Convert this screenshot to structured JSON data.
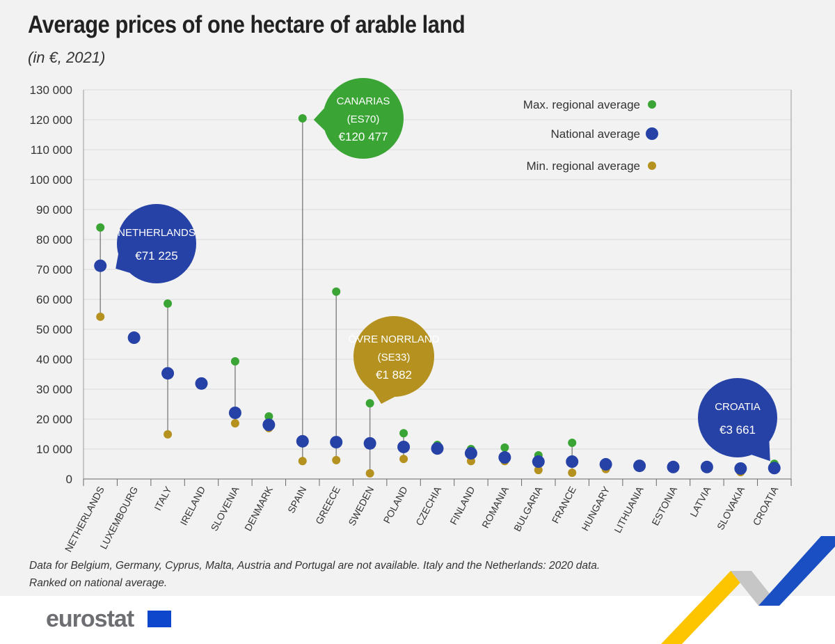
{
  "title": "Average prices of one hectare of arable land",
  "subtitle": "(in €, 2021)",
  "note_lines": [
    "Data for Belgium, Germany, Cyprus, Malta, Austria and Portugal are not available. Italy and the Netherlands: 2020 data.",
    "Ranked on national average."
  ],
  "logo": "eurostat",
  "colors": {
    "max": "#3aa535",
    "national": "#2742a6",
    "min": "#b5921f",
    "grid": "#d9d9d9"
  },
  "chart_data": {
    "type": "scatter",
    "title": "Average prices of one hectare of arable land",
    "subtitle": "(in €, 2021)",
    "ylim": [
      0,
      130000
    ],
    "yticks": [
      0,
      10000,
      20000,
      30000,
      40000,
      50000,
      60000,
      70000,
      80000,
      90000,
      100000,
      110000,
      120000,
      130000
    ],
    "ytick_labels": [
      "0",
      "10 000",
      "20 000",
      "30 000",
      "40 000",
      "50 000",
      "60 000",
      "70 000",
      "80 000",
      "90 000",
      "100 000",
      "110 000",
      "120 000",
      "130 000"
    ],
    "grid": true,
    "legend_placement": "top-right",
    "categories": [
      "NETHERLANDS",
      "LUXEMBOURG",
      "ITALY",
      "IRELAND",
      "SLOVENIA",
      "DENMARK",
      "SPAIN",
      "GREECE",
      "SWEDEN",
      "POLAND",
      "CZECHIA",
      "FINLAND",
      "ROMANIA",
      "BULGARIA",
      "FRANCE",
      "HUNGARY",
      "LITHUANIA",
      "ESTONIA",
      "LATVIA",
      "SLOVAKIA",
      "CROATIA"
    ],
    "series": [
      {
        "name": "Max. regional average",
        "values": [
          84000,
          null,
          58600,
          32500,
          39300,
          20900,
          120477,
          62600,
          25300,
          15300,
          11400,
          10000,
          10500,
          7900,
          12100,
          5300,
          4600,
          null,
          null,
          4100,
          5100
        ]
      },
      {
        "name": "National average",
        "values": [
          71225,
          47200,
          35300,
          31900,
          22100,
          18100,
          12600,
          12300,
          11900,
          10700,
          10200,
          8600,
          7200,
          5800,
          5800,
          4900,
          4400,
          4000,
          4000,
          3500,
          3661
        ]
      },
      {
        "name": "Min. regional average",
        "values": [
          54200,
          null,
          14900,
          null,
          18600,
          17000,
          6000,
          6300,
          1882,
          6700,
          9500,
          6000,
          6000,
          3000,
          2100,
          3300,
          3900,
          null,
          null,
          2300,
          null
        ]
      }
    ],
    "callouts": [
      {
        "lines": [
          "NETHERLANDS",
          "€71 225"
        ],
        "category": "NETHERLANDS",
        "series": "National average"
      },
      {
        "lines": [
          "CANARIAS",
          "(ES70)",
          "€120 477"
        ],
        "category": "SPAIN",
        "series": "Max. regional average"
      },
      {
        "lines": [
          "ÖVRE NORRLAND",
          "(SE33)",
          "€1 882"
        ],
        "category": "SWEDEN",
        "series": "Min. regional average"
      },
      {
        "lines": [
          "CROATIA",
          "€3 661"
        ],
        "category": "CROATIA",
        "series": "National average"
      }
    ]
  }
}
